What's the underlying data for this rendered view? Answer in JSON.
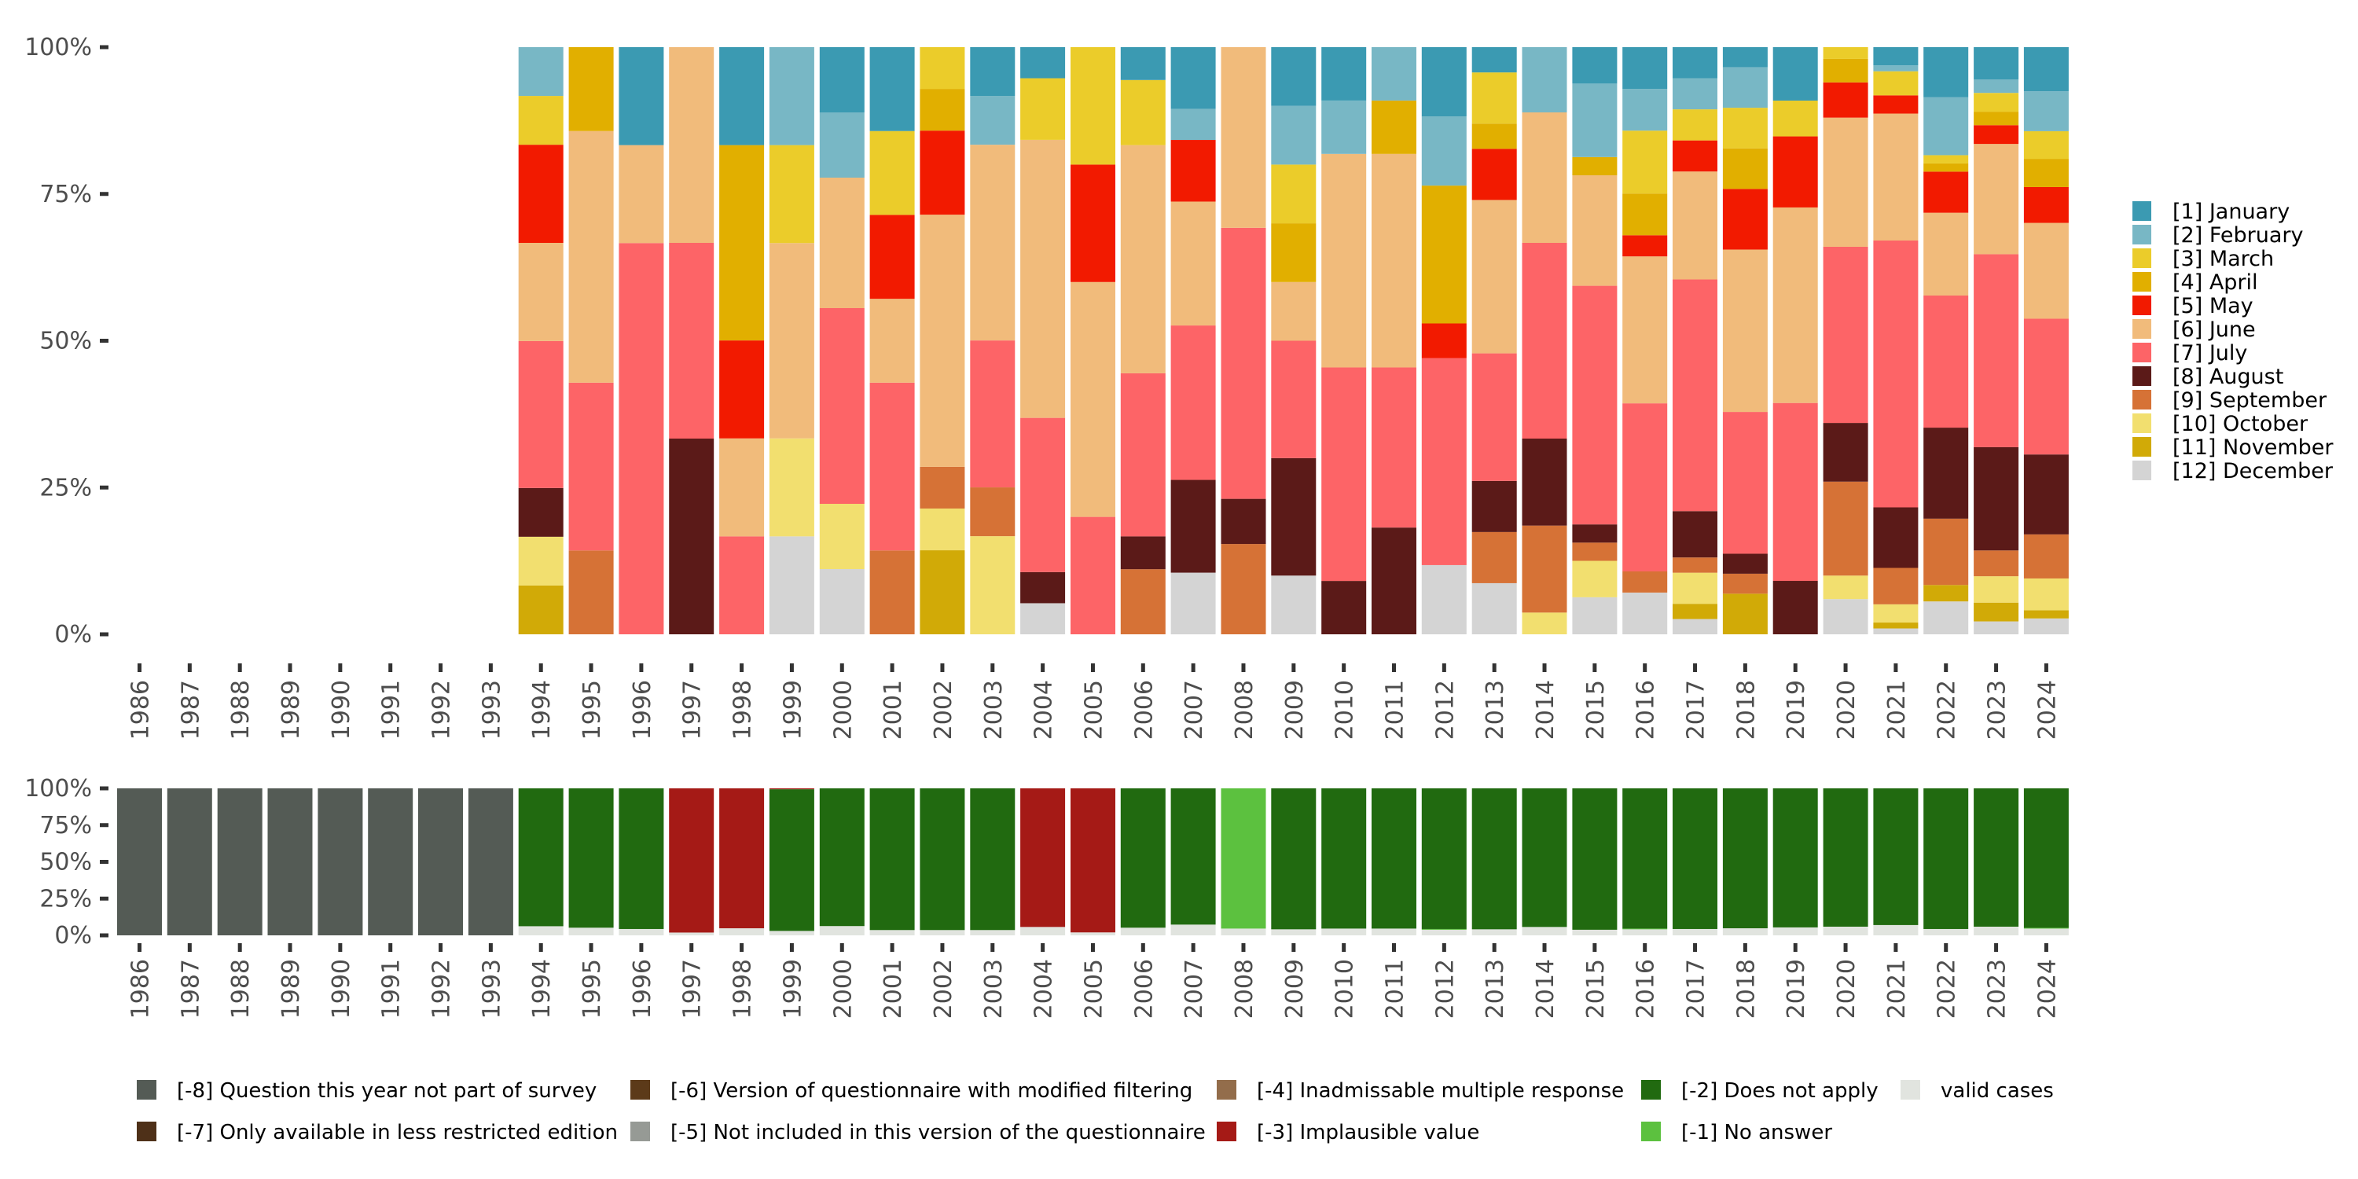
{
  "chart_data": [
    {
      "type": "bar",
      "stacked": "percent",
      "title": "",
      "xlabel": "",
      "ylabel": "",
      "ylim": [
        0,
        100
      ],
      "yticks": [
        "0%",
        "25%",
        "50%",
        "75%",
        "100%"
      ],
      "legend_position": "right",
      "categories": [
        "1986",
        "1987",
        "1988",
        "1989",
        "1990",
        "1991",
        "1992",
        "1993",
        "1994",
        "1995",
        "1996",
        "1997",
        "1998",
        "1999",
        "2000",
        "2001",
        "2002",
        "2003",
        "2004",
        "2005",
        "2006",
        "2007",
        "2008",
        "2009",
        "2010",
        "2011",
        "2012",
        "2013",
        "2014",
        "2015",
        "2016",
        "2017",
        "2018",
        "2019",
        "2020",
        "2021",
        "2022",
        "2023",
        "2024"
      ],
      "series": [
        {
          "name": "[1] January",
          "color": "#3b9ab2",
          "values": [
            0,
            0,
            0,
            0,
            0,
            0,
            0,
            0,
            0,
            0,
            16.7,
            0,
            16.7,
            0,
            11.1,
            14.3,
            0,
            8.3,
            5.3,
            0,
            5.6,
            10.5,
            0,
            10,
            9.1,
            0,
            11.8,
            4.3,
            0,
            6.2,
            7.1,
            5.3,
            3.4,
            9.1,
            0,
            3.1,
            8.5,
            5.5,
            7.5
          ]
        },
        {
          "name": "[2] February",
          "color": "#78b7c5",
          "values": [
            0,
            0,
            0,
            0,
            0,
            0,
            0,
            0,
            8.3,
            0,
            0,
            0,
            0,
            16.7,
            11.1,
            0,
            0,
            8.3,
            0,
            0,
            0,
            5.3,
            0,
            10,
            9.1,
            9.1,
            11.8,
            0,
            11.1,
            12.5,
            7.1,
            5.3,
            6.9,
            0,
            0,
            1.0,
            9.9,
            2.3,
            6.8
          ]
        },
        {
          "name": "[3] March",
          "color": "#ebcc2a",
          "values": [
            0,
            0,
            0,
            0,
            0,
            0,
            0,
            0,
            8.3,
            0,
            0,
            0,
            0,
            16.7,
            0,
            14.3,
            7.1,
            0,
            10.5,
            20,
            11.1,
            0,
            0,
            10,
            0,
            0,
            0,
            8.7,
            0,
            0,
            10.7,
            5.3,
            6.9,
            6.1,
            2.0,
            4.1,
            1.4,
            3.2,
            4.7
          ]
        },
        {
          "name": "[4] April",
          "color": "#e1af00",
          "values": [
            0,
            0,
            0,
            0,
            0,
            0,
            0,
            0,
            0,
            14.3,
            0,
            0,
            33.3,
            0,
            0,
            0,
            7.1,
            0,
            0,
            0,
            0,
            0,
            0,
            10,
            0,
            9.1,
            23.5,
            4.3,
            0,
            3.1,
            7.1,
            0,
            6.9,
            0,
            4.0,
            0,
            1.4,
            2.3,
            4.8
          ]
        },
        {
          "name": "[5] May",
          "color": "#f21a00",
          "values": [
            0,
            0,
            0,
            0,
            0,
            0,
            0,
            0,
            16.7,
            0,
            0,
            0,
            16.7,
            0,
            0,
            14.3,
            14.3,
            0,
            0,
            20,
            0,
            10.5,
            0,
            0,
            0,
            0,
            5.9,
            8.7,
            0,
            0,
            3.6,
            5.3,
            10.3,
            12.1,
            6.0,
            3.1,
            7.0,
            3.2,
            6.1
          ]
        },
        {
          "name": "[6] June",
          "color": "#f1bb7b",
          "values": [
            0,
            0,
            0,
            0,
            0,
            0,
            0,
            0,
            16.7,
            42.9,
            16.7,
            33.3,
            16.7,
            33.3,
            22.2,
            14.3,
            42.9,
            33.3,
            47.4,
            40,
            38.9,
            21.1,
            30.8,
            10,
            36.4,
            36.4,
            0,
            26.1,
            22.2,
            18.8,
            25.0,
            18.4,
            27.6,
            33.3,
            22.0,
            21.6,
            14.1,
            18.8,
            16.3
          ]
        },
        {
          "name": "[7] July",
          "color": "#fd6467",
          "values": [
            0,
            0,
            0,
            0,
            0,
            0,
            0,
            0,
            25,
            28.6,
            66.7,
            33.3,
            16.7,
            0,
            33.3,
            28.6,
            0,
            25,
            26.3,
            20,
            27.8,
            26.3,
            46.2,
            20,
            36.4,
            27.3,
            35.3,
            21.7,
            33.3,
            40.6,
            28.6,
            39.5,
            24.1,
            30.3,
            30.0,
            45.4,
            22.5,
            32.9,
            23.1
          ]
        },
        {
          "name": "[8] August",
          "color": "#5b1a18",
          "values": [
            0,
            0,
            0,
            0,
            0,
            0,
            0,
            0,
            8.3,
            0,
            0,
            33.3,
            0,
            0,
            0,
            0,
            0,
            0,
            5.3,
            0,
            5.6,
            15.8,
            7.7,
            20,
            9.1,
            18.2,
            0,
            8.7,
            14.8,
            3.1,
            0,
            7.9,
            3.4,
            9.1,
            10.0,
            10.3,
            15.5,
            17.6,
            13.6
          ]
        },
        {
          "name": "[9] September",
          "color": "#d67236",
          "values": [
            0,
            0,
            0,
            0,
            0,
            0,
            0,
            0,
            0,
            14.3,
            0,
            0,
            0,
            0,
            0,
            14.3,
            7.1,
            8.3,
            0,
            0,
            11.1,
            0,
            15.4,
            0,
            0,
            0,
            0,
            8.7,
            14.8,
            3.1,
            3.6,
            2.6,
            3.4,
            0,
            16.0,
            6.2,
            11.3,
            4.4,
            7.5
          ]
        },
        {
          "name": "[10] October",
          "color": "#f2df6f",
          "values": [
            0,
            0,
            0,
            0,
            0,
            0,
            0,
            0,
            8.3,
            0,
            0,
            0,
            0,
            16.7,
            11.1,
            0,
            7.1,
            16.7,
            0,
            0,
            0,
            0,
            0,
            0,
            0,
            0,
            0,
            0,
            3.7,
            6.2,
            0,
            5.3,
            0,
            0,
            4.0,
            3.1,
            0,
            4.5,
            5.4
          ]
        },
        {
          "name": "[11] November",
          "color": "#d1aa07",
          "values": [
            0,
            0,
            0,
            0,
            0,
            0,
            0,
            0,
            8.3,
            0,
            0,
            0,
            0,
            0,
            0,
            0,
            14.3,
            0,
            0,
            0,
            0,
            0,
            0,
            0,
            0,
            0,
            0,
            0,
            0,
            0,
            0,
            2.6,
            6.9,
            0,
            0,
            1.0,
            2.8,
            3.2,
            1.4
          ]
        },
        {
          "name": "[12] December",
          "color": "#d4d4d4",
          "values": [
            0,
            0,
            0,
            0,
            0,
            0,
            0,
            0,
            0,
            0,
            0,
            0,
            0,
            16.7,
            11.1,
            0,
            0,
            0,
            5.3,
            0,
            0,
            10.5,
            0,
            10,
            0,
            0,
            11.8,
            8.7,
            0,
            6.3,
            7.1,
            2.6,
            0,
            0,
            6.0,
            1.0,
            5.6,
            2.2,
            2.7
          ]
        }
      ]
    },
    {
      "type": "bar",
      "stacked": "percent",
      "title": "",
      "xlabel": "",
      "ylabel": "",
      "ylim": [
        0,
        100
      ],
      "yticks": [
        "0%",
        "25%",
        "50%",
        "75%",
        "100%"
      ],
      "legend_position": "bottom",
      "categories": [
        "1986",
        "1987",
        "1988",
        "1989",
        "1990",
        "1991",
        "1992",
        "1993",
        "1994",
        "1995",
        "1996",
        "1997",
        "1998",
        "1999",
        "2000",
        "2001",
        "2002",
        "2003",
        "2004",
        "2005",
        "2006",
        "2007",
        "2008",
        "2009",
        "2010",
        "2011",
        "2012",
        "2013",
        "2014",
        "2015",
        "2016",
        "2017",
        "2018",
        "2019",
        "2020",
        "2021",
        "2022",
        "2023",
        "2024"
      ],
      "series": [
        {
          "name": "[-8] Question this year not part of survey",
          "color": "#545b55",
          "values": [
            100,
            100,
            100,
            100,
            100,
            100,
            100,
            100,
            0,
            0,
            0,
            0,
            0,
            0,
            0,
            0,
            0,
            0,
            0,
            0,
            0,
            0,
            0,
            0,
            0,
            0,
            0,
            0,
            0,
            0,
            0,
            0,
            0,
            0,
            0,
            0,
            0,
            0,
            0
          ]
        },
        {
          "name": "[-7] Only available in less restricted edition",
          "color": "#4e3018",
          "values": [
            0,
            0,
            0,
            0,
            0,
            0,
            0,
            0,
            0,
            0,
            0,
            0,
            0,
            0,
            0,
            0,
            0,
            0,
            0,
            0,
            0,
            0,
            0,
            0,
            0,
            0,
            0,
            0,
            0,
            0,
            0,
            0,
            0,
            0,
            0,
            0,
            0,
            0,
            0
          ]
        },
        {
          "name": "[-6] Version of questionnaire with modified filtering",
          "color": "#5c3a19",
          "values": [
            0,
            0,
            0,
            0,
            0,
            0,
            0,
            0,
            0,
            0,
            0,
            0,
            0,
            0,
            0,
            0,
            0,
            0,
            0,
            0,
            0,
            0,
            0,
            0,
            0,
            0,
            0,
            0,
            0,
            0,
            0,
            0,
            0,
            0,
            0,
            0,
            0,
            0,
            0
          ]
        },
        {
          "name": "[-5] Not included in this version of the questionnaire",
          "color": "#969a95",
          "values": [
            0,
            0,
            0,
            0,
            0,
            0,
            0,
            0,
            0,
            0,
            0,
            0,
            0,
            0,
            0,
            0,
            0,
            0,
            0,
            0,
            0,
            0,
            0,
            0,
            0,
            0,
            0,
            0,
            0,
            0,
            0,
            0,
            0,
            0,
            0,
            0,
            0,
            0,
            0
          ]
        },
        {
          "name": "[-4] Inadmissable multiple response",
          "color": "#936d4b",
          "values": [
            0,
            0,
            0,
            0,
            0,
            0,
            0,
            0,
            0,
            0,
            0,
            0,
            0,
            0,
            0,
            0,
            0,
            0,
            0,
            0,
            0,
            0,
            0,
            0,
            0,
            0,
            0,
            0,
            0,
            0,
            0,
            0,
            0,
            0,
            0,
            0,
            0,
            0,
            0
          ]
        },
        {
          "name": "[-3] Implausible value",
          "color": "#a51a16",
          "values": [
            0,
            0,
            0,
            0,
            0,
            0,
            0,
            0,
            0,
            0,
            0,
            98.1,
            95.2,
            0.6,
            0,
            0,
            0,
            0,
            94.3,
            98.0,
            0,
            0,
            0,
            0,
            0,
            0,
            0,
            0,
            0,
            0,
            0,
            0,
            0,
            0,
            0,
            0,
            0,
            0,
            0
          ]
        },
        {
          "name": "[-2] Does not apply",
          "color": "#216a10",
          "values": [
            0,
            0,
            0,
            0,
            0,
            0,
            0,
            0,
            93.8,
            94.8,
            95.7,
            0,
            0,
            96.4,
            93.7,
            96.4,
            96.4,
            96.4,
            0,
            0,
            94.8,
            92.7,
            0,
            95.9,
            95.4,
            95.4,
            95.7,
            95.9,
            94.3,
            96.2,
            95.4,
            95.7,
            95.2,
            94.6,
            94.1,
            93.0,
            95.7,
            94.1,
            94.9
          ]
        },
        {
          "name": "[-1] No answer",
          "color": "#5cc13f",
          "values": [
            0,
            0,
            0,
            0,
            0,
            0,
            0,
            0,
            0,
            0,
            0,
            0,
            0,
            0,
            0,
            0,
            0,
            0,
            0,
            0,
            0,
            0,
            95.4,
            0,
            0,
            0,
            0.5,
            0,
            0,
            0,
            0.5,
            0,
            0,
            0,
            0,
            0,
            0,
            0,
            0.5
          ]
        },
        {
          "name": "valid cases",
          "color": "#e1e4df",
          "values": [
            0,
            0,
            0,
            0,
            0,
            0,
            0,
            0,
            6.2,
            5.2,
            4.3,
            1.9,
            4.8,
            3.0,
            6.3,
            3.6,
            3.6,
            3.6,
            5.7,
            2.0,
            5.2,
            7.3,
            4.6,
            4.1,
            4.6,
            4.6,
            3.8,
            4.1,
            5.7,
            3.8,
            4.1,
            4.3,
            4.8,
            5.4,
            5.9,
            7.0,
            4.3,
            5.9,
            4.6
          ]
        }
      ]
    }
  ]
}
